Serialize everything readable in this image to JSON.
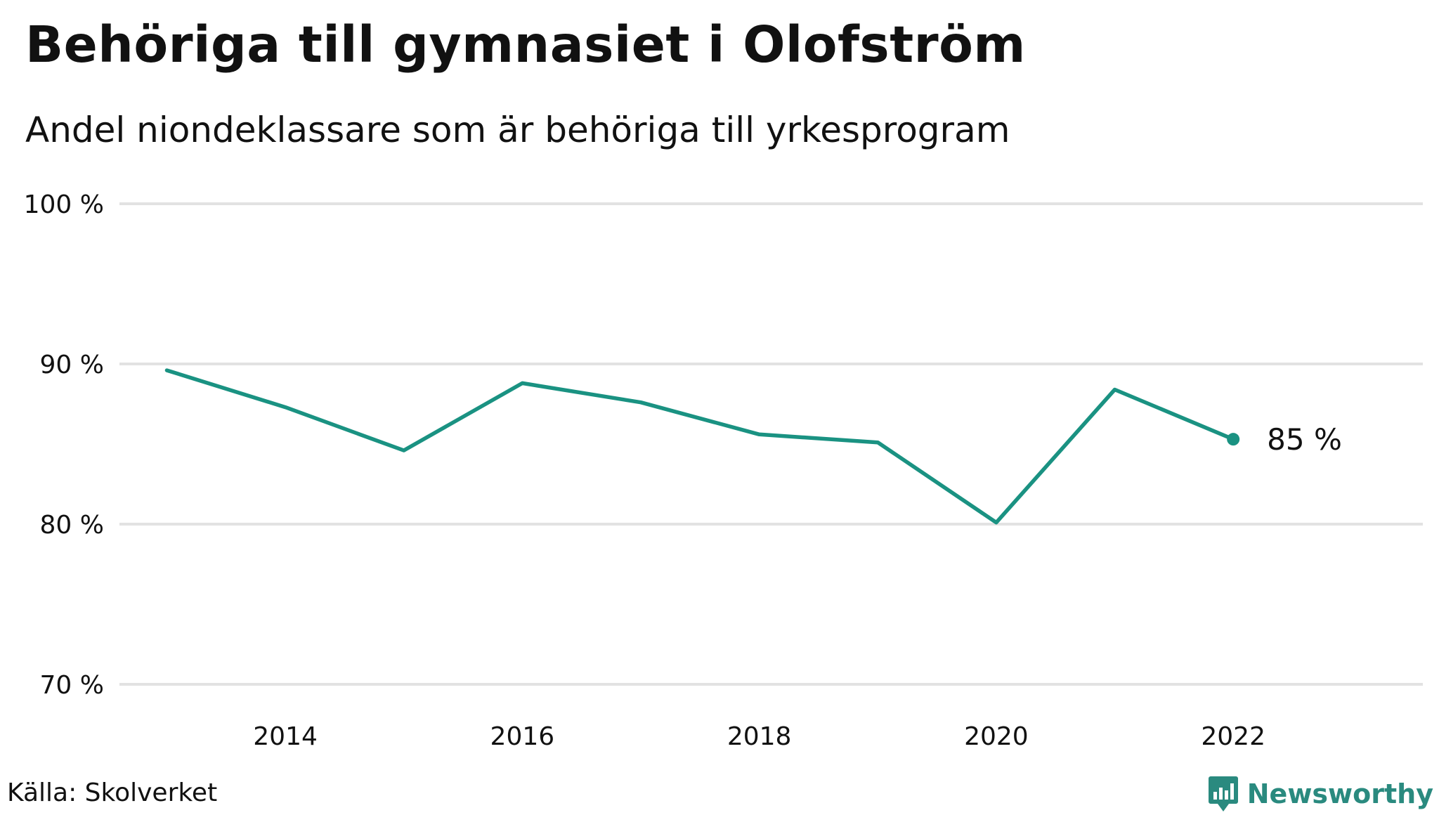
{
  "title": "Behöriga till gymnasiet i Olofström",
  "subtitle": "Andel niondeklassare som är behöriga till yrkesprogram",
  "source": "Källa: Skolverket",
  "brand": "Newsworthy",
  "colors": {
    "line": "#1a9282",
    "grid": "#e2e2e2",
    "text": "#111111",
    "brand": "#2a8a7f"
  },
  "chart_data": {
    "type": "line",
    "title": "Behöriga till gymnasiet i Olofström",
    "subtitle": "Andel niondeklassare som är behöriga till yrkesprogram",
    "xlabel": "",
    "ylabel": "",
    "xlim": [
      2012.6,
      2023.6
    ],
    "ylim": [
      70,
      100
    ],
    "y_ticks": [
      100,
      90,
      80,
      70
    ],
    "y_tick_labels": [
      "100 %",
      "90 %",
      "80 %",
      "70 %"
    ],
    "x_ticks": [
      2014,
      2016,
      2018,
      2020,
      2022
    ],
    "x_tick_labels": [
      "2014",
      "2016",
      "2018",
      "2020",
      "2022"
    ],
    "grid": true,
    "series": [
      {
        "name": "Olofström",
        "x": [
          2013,
          2014,
          2015,
          2016,
          2017,
          2018,
          2019,
          2020,
          2021,
          2022
        ],
        "values": [
          89.6,
          87.3,
          84.6,
          88.8,
          87.6,
          85.6,
          85.1,
          80.1,
          88.4,
          85.3
        ]
      }
    ],
    "end_label": "85  %"
  }
}
